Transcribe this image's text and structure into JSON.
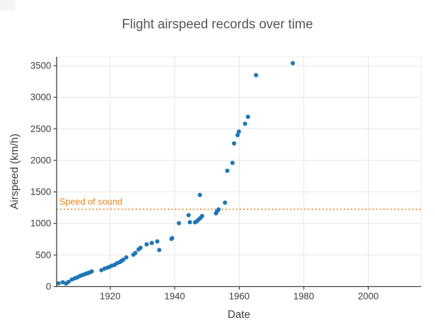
{
  "title": "Flight airspeed records over time",
  "annotation": {
    "label": "Speed of sound",
    "value": 1225,
    "color": "#e8821e",
    "style": "dotted"
  },
  "colors": {
    "point": "#1f77b4",
    "grid": "#e6e6e6",
    "spine": "#3b3b3b",
    "tick_text": "#3d3d3d",
    "title_text": "#545454",
    "annotation": "#e8821e",
    "background": "#ffffff"
  },
  "chart_data": {
    "type": "scatter",
    "title": "Flight airspeed records over time",
    "xlabel": "Date",
    "ylabel": "Airspeed (km/h)",
    "xlim": [
      1903.4,
      2016.4
    ],
    "ylim": [
      0,
      3643
    ],
    "x_ticks": [
      1920,
      1940,
      1960,
      1980,
      2000
    ],
    "y_ticks": [
      0,
      500,
      1000,
      1500,
      2000,
      2500,
      3000,
      3500
    ],
    "grid": true,
    "legend": false,
    "marker_radius": 3.1,
    "reference_line": {
      "label": "Speed of sound",
      "y": 1225
    },
    "points": [
      [
        1904.0,
        52
      ],
      [
        1905.3,
        68
      ],
      [
        1906.3,
        48
      ],
      [
        1907.1,
        75
      ],
      [
        1908.1,
        112
      ],
      [
        1909.0,
        130
      ],
      [
        1909.8,
        145
      ],
      [
        1910.5,
        165
      ],
      [
        1911.1,
        178
      ],
      [
        1911.8,
        190
      ],
      [
        1912.4,
        200
      ],
      [
        1913.0,
        212
      ],
      [
        1913.7,
        224
      ],
      [
        1914.3,
        240
      ],
      [
        1917.3,
        260
      ],
      [
        1918.3,
        285
      ],
      [
        1919.2,
        300
      ],
      [
        1919.9,
        315
      ],
      [
        1920.5,
        330
      ],
      [
        1921.4,
        345
      ],
      [
        1922.2,
        372
      ],
      [
        1923.0,
        388
      ],
      [
        1923.5,
        406
      ],
      [
        1924.0,
        424
      ],
      [
        1925.0,
        462
      ],
      [
        1927.2,
        505
      ],
      [
        1927.8,
        533
      ],
      [
        1928.8,
        588
      ],
      [
        1929.4,
        615
      ],
      [
        1931.3,
        668
      ],
      [
        1932.9,
        690
      ],
      [
        1934.6,
        716
      ],
      [
        1935.2,
        580
      ],
      [
        1939.0,
        755
      ],
      [
        1939.2,
        768
      ],
      [
        1941.3,
        1005
      ],
      [
        1944.3,
        1132
      ],
      [
        1944.7,
        1020
      ],
      [
        1946.3,
        1018
      ],
      [
        1946.9,
        1037
      ],
      [
        1947.4,
        1062
      ],
      [
        1948.0,
        1088
      ],
      [
        1948.5,
        1118
      ],
      [
        1947.8,
        1452
      ],
      [
        1952.8,
        1160
      ],
      [
        1953.1,
        1190
      ],
      [
        1953.6,
        1222
      ],
      [
        1955.6,
        1330
      ],
      [
        1956.3,
        1835
      ],
      [
        1957.9,
        1960
      ],
      [
        1958.4,
        2268
      ],
      [
        1959.5,
        2400
      ],
      [
        1959.9,
        2456
      ],
      [
        1961.8,
        2580
      ],
      [
        1962.7,
        2690
      ],
      [
        1965.2,
        3350
      ],
      [
        1976.6,
        3540
      ]
    ]
  }
}
